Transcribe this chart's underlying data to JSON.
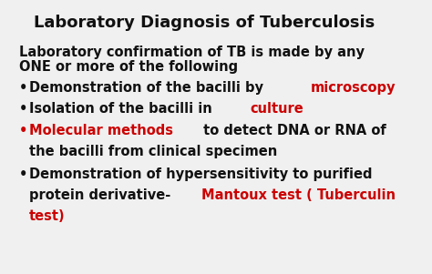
{
  "title": "Laboratory Diagnosis of Tuberculosis",
  "title_fontsize": 13,
  "bg_color": "#f0f0f0",
  "text_color": "#111111",
  "red_color": "#cc0000",
  "body_fontsize": 10.5,
  "intro_line1": "Laboratory confirmation of TB is made by any",
  "intro_line2": "ONE or more of the following",
  "bullet1_black": "Demonstration of the bacilli by ",
  "bullet1_red": "microscopy",
  "bullet2_black": "Isolation of the bacilli in ",
  "bullet2_red": "culture",
  "bullet3_red": "Molecular methods",
  "bullet3_black": " to detect DNA or RNA of",
  "bullet3_line2": "the bacilli from clinical specimen",
  "bullet4_black": "Demonstration of hypersensitivity to purified",
  "bullet4_line2_black": "protein derivative- ",
  "bullet4_line2_red": "Mantoux test ( Tuberculin",
  "bullet4_line3_red": "test)"
}
